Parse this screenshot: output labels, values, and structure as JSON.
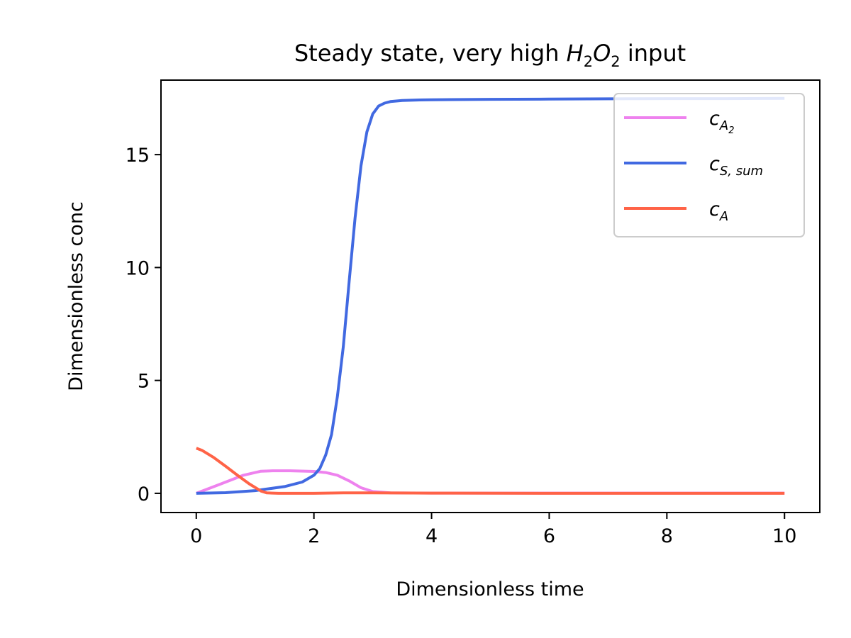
{
  "chart_data": {
    "type": "line",
    "title": {
      "prefix": "Steady state, very high ",
      "species": "H",
      "species_sub1": "2",
      "species_mid": "O",
      "species_sub2": "2",
      "suffix": " input"
    },
    "xlabel": "Dimensionless time",
    "ylabel": "Dimensionless conc",
    "xlim": [
      -0.6,
      10.6
    ],
    "ylim": [
      -0.85,
      18.3
    ],
    "xticks": [
      0,
      2,
      4,
      6,
      8,
      10
    ],
    "yticks": [
      0,
      5,
      10,
      15
    ],
    "grid": false,
    "legend_placement": "top-right",
    "series": [
      {
        "name": "c_A2",
        "label_main": "c",
        "label_sub": "A",
        "label_subsub": "2",
        "color": "#ee82ee",
        "x": [
          0,
          0.4,
          0.8,
          1.1,
          1.3,
          1.6,
          2.0,
          2.2,
          2.4,
          2.6,
          2.8,
          3.0,
          3.3,
          4,
          6,
          8,
          10
        ],
        "y": [
          0,
          0.4,
          0.8,
          0.98,
          1.0,
          1.0,
          0.97,
          0.92,
          0.8,
          0.55,
          0.25,
          0.08,
          0.02,
          0.01,
          0.01,
          0.01,
          0.01
        ]
      },
      {
        "name": "c_S,sum",
        "label_main": "c",
        "label_sub": "S, sum",
        "color": "#4169e1",
        "x": [
          0,
          0.5,
          1.0,
          1.5,
          1.8,
          2.0,
          2.1,
          2.2,
          2.3,
          2.4,
          2.5,
          2.6,
          2.7,
          2.8,
          2.9,
          3.0,
          3.1,
          3.2,
          3.3,
          3.5,
          3.8,
          4.0,
          5,
          6,
          7,
          8,
          9,
          10
        ],
        "y": [
          0,
          0.03,
          0.12,
          0.3,
          0.5,
          0.8,
          1.1,
          1.7,
          2.6,
          4.3,
          6.5,
          9.4,
          12.2,
          14.5,
          16.0,
          16.8,
          17.15,
          17.28,
          17.35,
          17.4,
          17.42,
          17.43,
          17.45,
          17.46,
          17.47,
          17.48,
          17.48,
          17.49
        ]
      },
      {
        "name": "c_A",
        "label_main": "c",
        "label_sub": "A",
        "color": "#ff6347",
        "x": [
          0,
          0.1,
          0.3,
          0.5,
          0.7,
          0.9,
          1.1,
          1.2,
          1.4,
          2.0,
          2.5,
          3.0,
          4,
          6,
          8,
          10
        ],
        "y": [
          2.0,
          1.9,
          1.58,
          1.2,
          0.8,
          0.42,
          0.1,
          0.02,
          0.0,
          0.0,
          0.02,
          0.02,
          0.01,
          0.0,
          0.0,
          0.0
        ]
      }
    ]
  }
}
